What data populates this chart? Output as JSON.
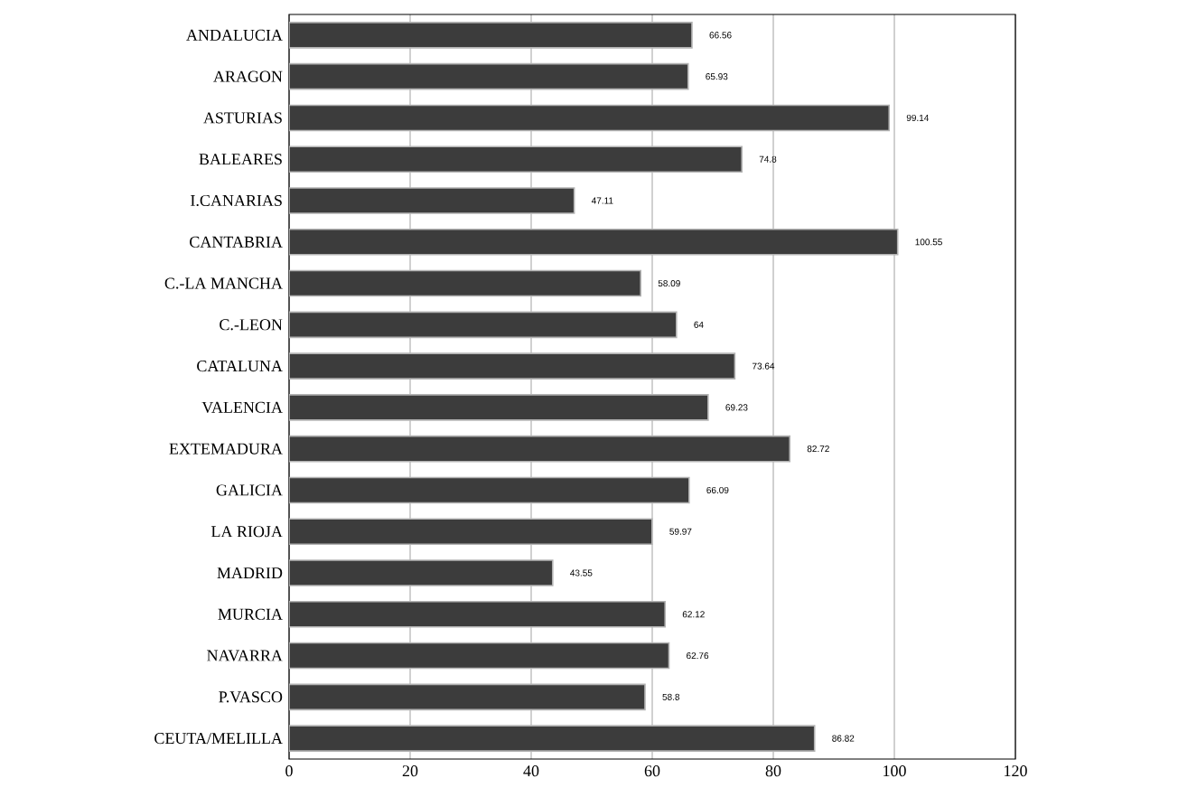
{
  "chart_data": {
    "type": "bar",
    "orientation": "horizontal",
    "categories": [
      "ANDALUCIA",
      "ARAGON",
      "ASTURIAS",
      "BALEARES",
      "I.CANARIAS",
      "CANTABRIA",
      "C.-LA MANCHA",
      "C.-LEON",
      "CATALUNA",
      "VALENCIA",
      "EXTEMADURA",
      "GALICIA",
      "LA RIOJA",
      "MADRID",
      "MURCIA",
      "NAVARRA",
      "P.VASCO",
      "CEUTA/MELILLA"
    ],
    "values": [
      66.56,
      65.93,
      99.14,
      74.8,
      47.11,
      100.55,
      58.09,
      64,
      73.64,
      69.23,
      82.72,
      66.09,
      59.97,
      43.55,
      62.12,
      62.76,
      58.8,
      86.82
    ],
    "color": "#3c3c3c",
    "data_labels": true,
    "grid": "x",
    "xlim": [
      0,
      120
    ],
    "xticks": [
      0,
      20,
      40,
      60,
      80,
      100,
      120
    ]
  }
}
